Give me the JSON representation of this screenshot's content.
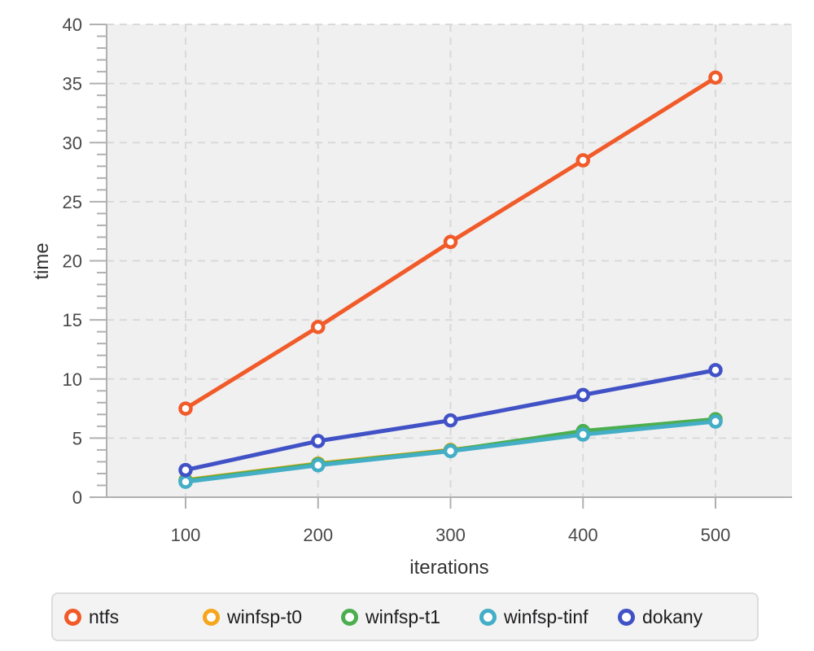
{
  "chart_data": {
    "type": "line",
    "title": "",
    "xlabel": "iterations",
    "ylabel": "time",
    "x": [
      100,
      200,
      300,
      400,
      500
    ],
    "series": [
      {
        "name": "ntfs",
        "color": "#f15a29",
        "values": [
          7.5,
          14.4,
          21.6,
          28.5,
          35.5
        ]
      },
      {
        "name": "winfsp-t0",
        "color": "#f5a61d",
        "values": [
          1.45,
          2.85,
          4.0,
          5.35,
          6.45
        ]
      },
      {
        "name": "winfsp-t1",
        "color": "#4cae4f",
        "values": [
          1.4,
          2.8,
          3.95,
          5.6,
          6.6
        ]
      },
      {
        "name": "winfsp-tinf",
        "color": "#43aec6",
        "values": [
          1.3,
          2.7,
          3.9,
          5.3,
          6.4
        ]
      },
      {
        "name": "dokany",
        "color": "#4152c6",
        "values": [
          2.3,
          4.75,
          6.5,
          8.65,
          10.75
        ]
      }
    ],
    "ylim": [
      0,
      40
    ],
    "y_major_ticks": [
      0,
      5,
      10,
      15,
      20,
      25,
      30,
      35,
      40
    ],
    "y_minor_step": 1,
    "x_ticks": [
      100,
      200,
      300,
      400,
      500
    ],
    "grid": "dashed",
    "legend_position": "bottom"
  },
  "style": {
    "panel_bg": "#f0f0f0",
    "grid_color": "#d9d9d9",
    "axis_color": "#b0b0b0",
    "tick_label_color": "#484848",
    "axis_title_color": "#333333",
    "legend_bg": "#f3f3f3",
    "legend_border": "#dcdcdc",
    "legend_text": "#1d1d1f"
  }
}
